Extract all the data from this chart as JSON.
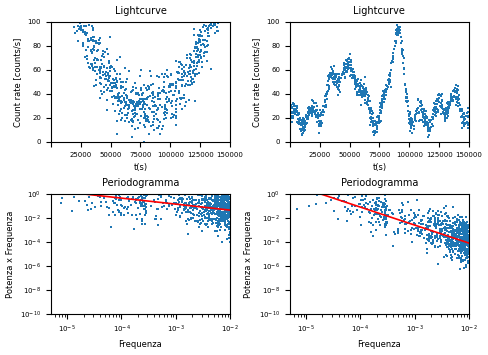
{
  "title_lc": "Lightcurve",
  "title_pg": "Periodogramma",
  "xlabel_lc": "t(s)",
  "ylabel_lc": "Count rate [counts/s]",
  "xlabel_pg": "Frequenza",
  "ylabel_pg": "Potenza x Frequenza",
  "lc1_xlim": [
    0,
    150000
  ],
  "lc1_ylim": [
    0,
    100
  ],
  "lc2_xlim": [
    0,
    150000
  ],
  "lc2_ylim": [
    0,
    100
  ],
  "pg1_ylim": [
    -10,
    0
  ],
  "pg2_ylim": [
    -10,
    0
  ],
  "pg_xlim": [
    -5.3,
    -2.0
  ],
  "dot_color": "#1f77b4",
  "line_color": "red",
  "dot_size": 2,
  "n_lc": 900,
  "n_pg": 800
}
